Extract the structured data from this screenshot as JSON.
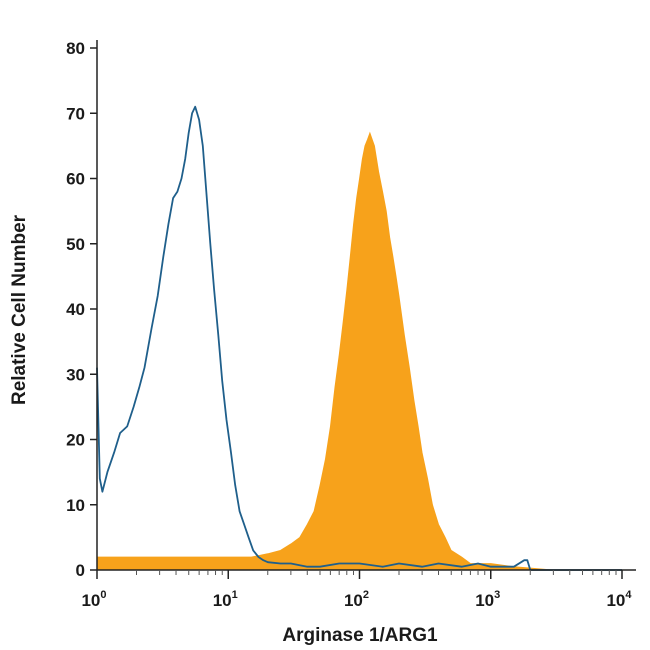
{
  "chart_data": {
    "type": "area",
    "title": "",
    "xlabel": "Arginase 1/ARG1",
    "ylabel": "Relative Cell Number",
    "x_scale": "log",
    "xlim": [
      1,
      10000
    ],
    "ylim": [
      0,
      80
    ],
    "grid": false,
    "legend": "none",
    "x_ticks": [
      {
        "value": 1,
        "base": "10",
        "exp": "0"
      },
      {
        "value": 10,
        "base": "10",
        "exp": "1"
      },
      {
        "value": 100,
        "base": "10",
        "exp": "2"
      },
      {
        "value": 1000,
        "base": "10",
        "exp": "3"
      },
      {
        "value": 10000,
        "base": "10",
        "exp": "4"
      }
    ],
    "y_ticks": [
      "0",
      "10",
      "20",
      "30",
      "40",
      "50",
      "60",
      "70",
      "80"
    ],
    "series": [
      {
        "style": "outline",
        "color": "#1f5f8b",
        "x": [
          1.0,
          1.05,
          1.1,
          1.2,
          1.35,
          1.5,
          1.7,
          1.9,
          2.1,
          2.3,
          2.6,
          2.9,
          3.2,
          3.5,
          3.8,
          4.1,
          4.4,
          4.7,
          5.0,
          5.3,
          5.6,
          6.0,
          6.4,
          6.8,
          7.3,
          7.8,
          8.4,
          9.0,
          9.7,
          10.5,
          11.3,
          12.2,
          13.2,
          14.3,
          15.5,
          17.0,
          18.5,
          20.0,
          25.0,
          30.0,
          40.0,
          50.0,
          70.0,
          100.0,
          150.0,
          200.0,
          300.0,
          400.0,
          600.0,
          800.0,
          1000.0,
          1200.0,
          1500.0,
          1800.0,
          1900.0,
          2000.0,
          3000.0,
          5000.0,
          10000.0
        ],
        "values": [
          31,
          14,
          12,
          15,
          18,
          21,
          22,
          25,
          28,
          31,
          37,
          42,
          48,
          53,
          57,
          58,
          60,
          63,
          67,
          70,
          71,
          69,
          65,
          58,
          50,
          43,
          36,
          29,
          23,
          18,
          13,
          9,
          7,
          5,
          3,
          2,
          1.5,
          1.2,
          1,
          1,
          0.5,
          0.5,
          1,
          1,
          0.5,
          1,
          0.5,
          1,
          0.5,
          1,
          0.5,
          0.5,
          0.5,
          1.5,
          1.5,
          0,
          0,
          0,
          0
        ]
      },
      {
        "style": "filled",
        "color": "#f7a21b",
        "x": [
          1.0,
          2.0,
          5.0,
          10.0,
          15.0,
          20.0,
          25.0,
          30.0,
          35.0,
          40.0,
          45.0,
          50.0,
          55.0,
          60.0,
          65.0,
          70.0,
          75.0,
          80.0,
          85.0,
          90.0,
          95.0,
          100.0,
          105.0,
          110.0,
          115.0,
          120.0,
          125.0,
          130.0,
          135.0,
          140.0,
          150.0,
          160.0,
          170.0,
          180.0,
          190.0,
          200.0,
          220.0,
          240.0,
          260.0,
          280.0,
          300.0,
          330.0,
          360.0,
          400.0,
          450.0,
          500.0,
          600.0,
          700.0,
          1000.0,
          1500.0,
          2000.0,
          3000.0,
          10000.0
        ],
        "values": [
          2,
          2,
          2,
          2,
          2,
          2.5,
          3,
          4,
          5,
          7,
          9,
          13,
          17,
          22,
          28,
          33,
          38,
          43,
          48,
          53,
          57,
          60,
          63,
          65,
          66,
          67,
          66,
          65,
          63,
          61,
          58,
          55,
          51,
          48,
          45,
          42,
          36,
          31,
          26,
          22,
          18,
          14,
          10,
          7,
          5,
          3,
          2,
          1,
          1,
          0.5,
          0.3,
          0,
          0
        ]
      }
    ]
  }
}
